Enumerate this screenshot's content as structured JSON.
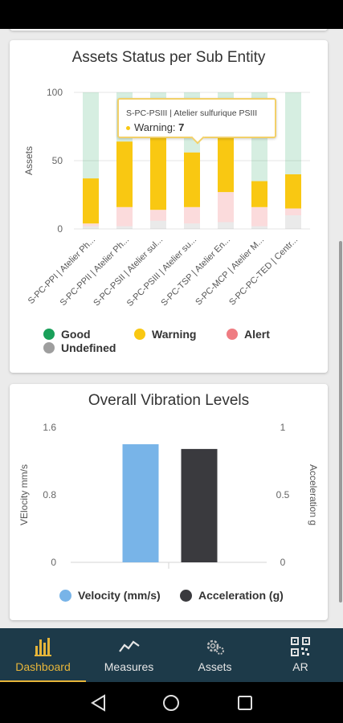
{
  "colors": {
    "good": "#1aa05a",
    "warning": "#f9c812",
    "alert": "#ef7c82",
    "undefined": "#9e9e9e",
    "velocity": "#78b4e8",
    "acceleration": "#3a3a3e",
    "nav_bg": "#1d3a49",
    "nav_active": "#e6b53a"
  },
  "assets_card": {
    "title": "Assets Status per Sub Entity",
    "tooltip": {
      "title": "S-PC-PSIII | Atelier sulfurique PSIII",
      "label": "Warning:",
      "value": "7"
    },
    "legend": {
      "good": "Good",
      "warning": "Warning",
      "alert": "Alert",
      "undefined": "Undefined"
    }
  },
  "vibration_card": {
    "title": "Overall Vibration Levels",
    "legend": {
      "velocity": "Velocity (mm/s)",
      "acceleration": "Acceleration (g)"
    }
  },
  "chart_data": [
    {
      "type": "bar",
      "stacked": true,
      "title": "Assets Status per Sub Entity",
      "ylabel": "Assets",
      "ylim": [
        0,
        100
      ],
      "yticks": [
        "0",
        "50",
        "100"
      ],
      "categories": [
        "S-PC-PPI | Atelier Ph...",
        "S-PC-PPII | Atelier Ph...",
        "S-PC-PSII | Atelier sul...",
        "S-PC-PSIII | Atelier su...",
        "S-PC-TSP | Atelier En...",
        "S-PC-MCP | Atelier M...",
        "S-PC-PC-TED | Centr..."
      ],
      "series": [
        {
          "name": "Undefined",
          "values": [
            2,
            2,
            6,
            4,
            5,
            2,
            10
          ]
        },
        {
          "name": "Alert",
          "values": [
            2,
            14,
            8,
            12,
            22,
            14,
            5
          ]
        },
        {
          "name": "Warning",
          "values": [
            33,
            48,
            56,
            40,
            40,
            19,
            25
          ]
        },
        {
          "name": "Good",
          "values": [
            63,
            36,
            30,
            44,
            33,
            65,
            60
          ]
        }
      ],
      "grid": true,
      "legend_position": "bottom"
    },
    {
      "type": "bar",
      "title": "Overall Vibration Levels",
      "categories": [
        ""
      ],
      "series": [
        {
          "name": "Velocity (mm/s)",
          "axis": "left",
          "values": [
            1.4
          ]
        },
        {
          "name": "Acceleration (g)",
          "axis": "right",
          "values": [
            0.84
          ]
        }
      ],
      "ylabel": "VElocity mm/s",
      "ylim": [
        0,
        1.6
      ],
      "yticks": [
        "0",
        "0.8",
        "1.6"
      ],
      "y2label": "Acceleration g",
      "y2lim": [
        0,
        1
      ],
      "y2ticks": [
        "0",
        "0.5",
        "1"
      ],
      "legend_position": "bottom"
    }
  ],
  "bottom_nav": {
    "items": [
      {
        "label": "Dashboard",
        "icon": "bar-chart-icon"
      },
      {
        "label": "Measures",
        "icon": "line-chart-icon"
      },
      {
        "label": "Assets",
        "icon": "gears-icon"
      },
      {
        "label": "AR",
        "icon": "qr-code-icon"
      }
    ]
  },
  "system_nav": {
    "icons": [
      "back-triangle-icon",
      "home-circle-icon",
      "recents-square-icon"
    ]
  }
}
